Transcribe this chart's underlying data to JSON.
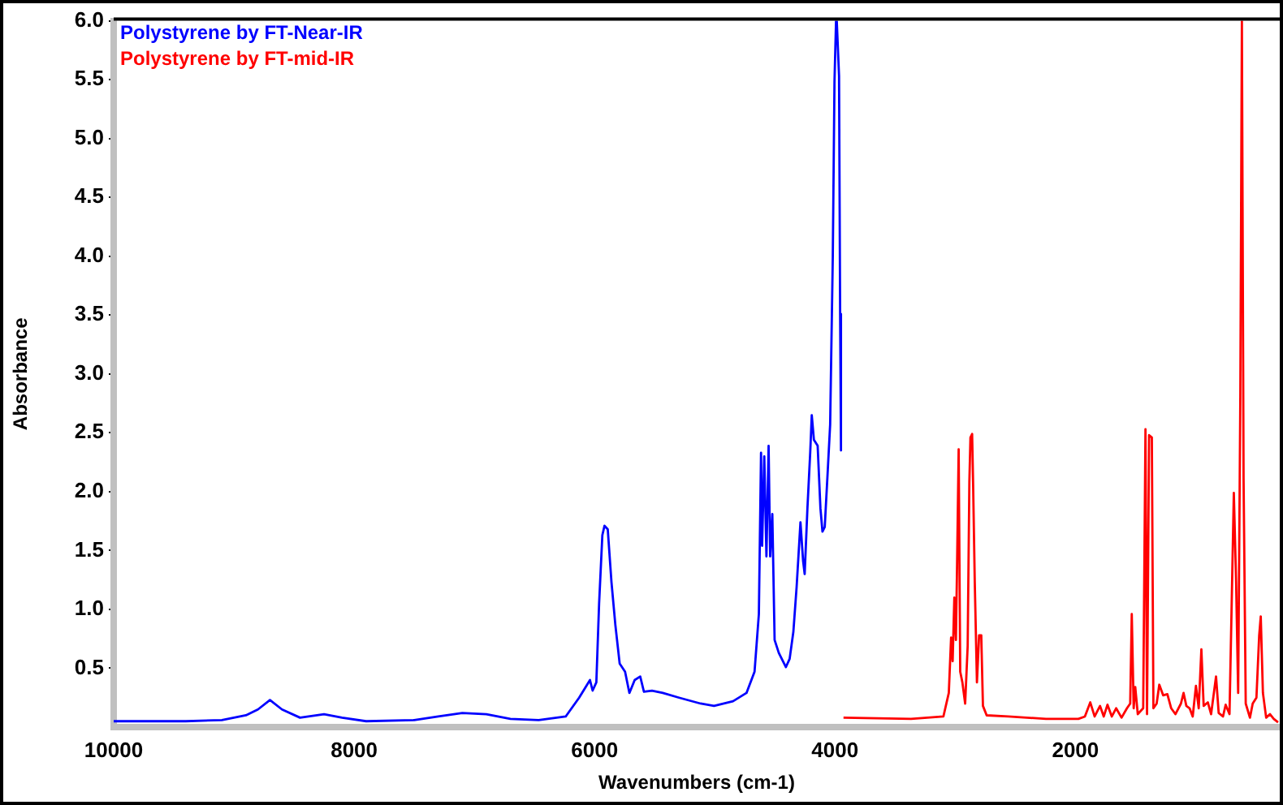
{
  "chart_data": {
    "type": "line",
    "xlabel": "Wavenumbers (cm-1)",
    "ylabel": "Absorbance",
    "legend": "top left",
    "marker": "none",
    "line_style": "solid",
    "grid": false,
    "xlim": [
      10000,
      300
    ],
    "xticks": [
      10000,
      8000,
      6000,
      4000,
      2000
    ],
    "ylim": [
      0,
      6
    ],
    "yticks": [
      0.5,
      {
        "value": 1,
        "label": "1.0"
      },
      1.5,
      {
        "value": 2,
        "label": "2.0"
      },
      2.5,
      {
        "value": 3,
        "label": "3.0"
      },
      3.5,
      {
        "value": 4,
        "label": "4.0"
      },
      4.5,
      {
        "value": 5,
        "label": "5.0"
      },
      5.5,
      {
        "value": 6,
        "label": "6.0"
      }
    ],
    "series": [
      {
        "name": "Polystyrene by FT-Near-IR",
        "color": "#0000ff",
        "x": [
          10000,
          9400,
          9100,
          8900,
          8800,
          8700,
          8600,
          8450,
          8250,
          8100,
          7900,
          7500,
          7300,
          7100,
          6900,
          6700,
          6465,
          6240,
          6128,
          6038,
          6016,
          5985,
          5962,
          5935,
          5917,
          5890,
          5859,
          5827,
          5791,
          5746,
          5710,
          5666,
          5620,
          5589,
          5522,
          5432,
          5297,
          5118,
          5006,
          4848,
          4736,
          4669,
          4633,
          4615,
          4606,
          4588,
          4570,
          4552,
          4539,
          4521,
          4502,
          4467,
          4408,
          4377,
          4346,
          4319,
          4287,
          4265,
          4252,
          4229,
          4206,
          4193,
          4175,
          4144,
          4121,
          4104,
          4085,
          4063,
          4040,
          4018,
          4004,
          3991,
          3985,
          3966,
          3957,
          3950
        ],
        "values": [
          0.05,
          0.05,
          0.06,
          0.1,
          0.15,
          0.23,
          0.15,
          0.08,
          0.11,
          0.08,
          0.05,
          0.06,
          0.09,
          0.12,
          0.11,
          0.07,
          0.06,
          0.09,
          0.25,
          0.4,
          0.31,
          0.38,
          1.05,
          1.63,
          1.71,
          1.68,
          1.23,
          0.87,
          0.54,
          0.47,
          0.29,
          0.4,
          0.43,
          0.3,
          0.31,
          0.29,
          0.25,
          0.2,
          0.18,
          0.22,
          0.29,
          0.47,
          0.96,
          2.33,
          1.54,
          2.3,
          1.45,
          2.39,
          1.45,
          1.81,
          0.74,
          0.63,
          0.51,
          0.58,
          0.81,
          1.19,
          1.74,
          1.41,
          1.3,
          1.86,
          2.33,
          2.65,
          2.44,
          2.39,
          1.86,
          1.66,
          1.7,
          2.12,
          2.57,
          4.0,
          5.48,
          6.0,
          6.0,
          5.53,
          3.51,
          2.35
        ]
      },
      {
        "name": "Polystyrene by FT-mid-IR",
        "color": "#ff0000",
        "x": [
          3929,
          3367,
          3098,
          3053,
          3034,
          3021,
          3007,
          2994,
          2985,
          2971,
          2958,
          2940,
          2917,
          2896,
          2882,
          2873,
          2859,
          2851,
          2837,
          2819,
          2801,
          2783,
          2769,
          2738,
          2559,
          2245,
          1975,
          1921,
          1876,
          1840,
          1795,
          1764,
          1733,
          1697,
          1661,
          1616,
          1571,
          1544,
          1531,
          1515,
          1502,
          1481,
          1436,
          1417,
          1404,
          1387,
          1364,
          1351,
          1324,
          1302,
          1270,
          1235,
          1203,
          1168,
          1122,
          1100,
          1077,
          1050,
          1024,
          997,
          974,
          952,
          933,
          898,
          871,
          830,
          808,
          772,
          750,
          718,
          696,
          682,
          663,
          646,
          628,
          615,
          601,
          583,
          548,
          525,
          494,
          471,
          458,
          440,
          413,
          381,
          350,
          314
        ],
        "values": [
          0.08,
          0.07,
          0.09,
          0.29,
          0.76,
          0.56,
          1.1,
          0.74,
          1.32,
          2.36,
          0.47,
          0.38,
          0.2,
          0.69,
          2.08,
          2.46,
          2.49,
          2.08,
          1.23,
          0.38,
          0.78,
          0.78,
          0.18,
          0.1,
          0.09,
          0.07,
          0.07,
          0.09,
          0.21,
          0.09,
          0.18,
          0.09,
          0.19,
          0.09,
          0.16,
          0.08,
          0.16,
          0.2,
          0.96,
          0.16,
          0.34,
          0.11,
          0.16,
          2.53,
          0.11,
          2.48,
          2.46,
          0.16,
          0.2,
          0.36,
          0.27,
          0.28,
          0.16,
          0.11,
          0.2,
          0.29,
          0.18,
          0.16,
          0.09,
          0.35,
          0.16,
          0.66,
          0.18,
          0.21,
          0.11,
          0.43,
          0.12,
          0.09,
          0.19,
          0.11,
          1.25,
          1.99,
          1.23,
          0.29,
          2.8,
          6.0,
          2.12,
          0.2,
          0.08,
          0.2,
          0.25,
          0.78,
          0.94,
          0.29,
          0.08,
          0.11,
          0.07,
          0.04
        ]
      }
    ]
  }
}
